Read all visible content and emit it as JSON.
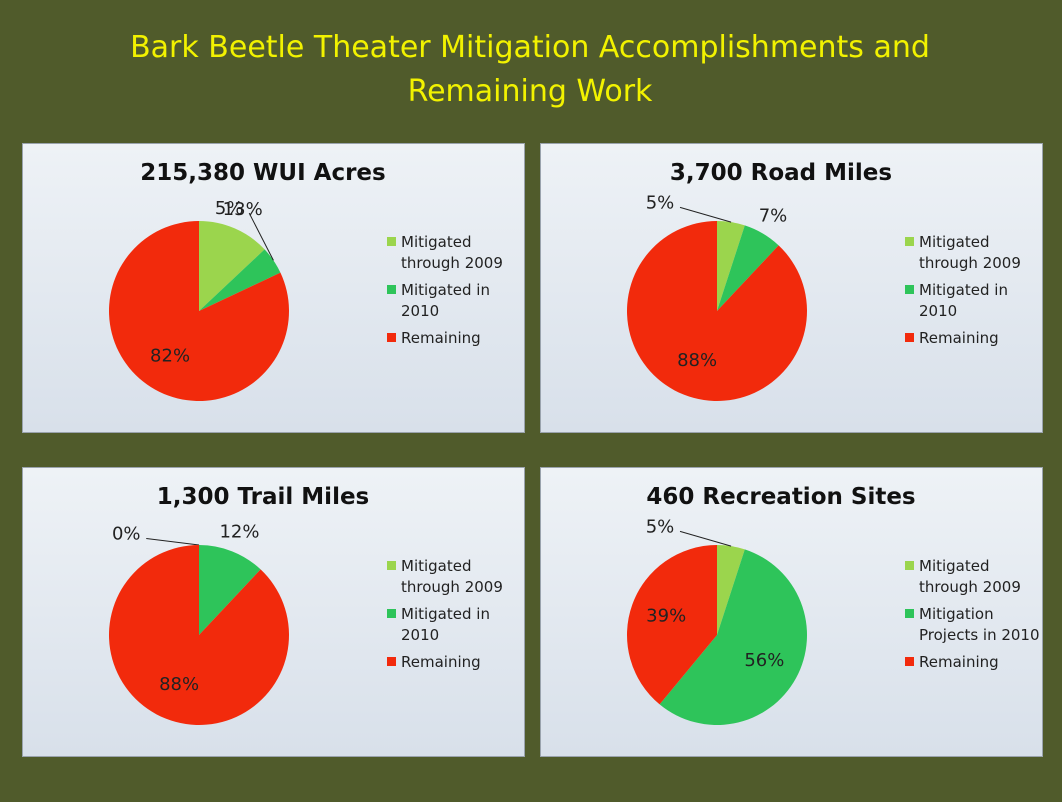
{
  "title": "Bark Beetle Theater Mitigation Accomplishments and Remaining Work",
  "chart_data": [
    {
      "type": "pie",
      "title": "215,380 WUI Acres",
      "categories": [
        "Mitigated through 2009",
        "Mitigated in 2010",
        "Remaining"
      ],
      "values": [
        13,
        5,
        82
      ],
      "value_labels": [
        "13%",
        "5%",
        "82%"
      ],
      "colors": [
        "#9bd54d",
        "#2ec45a",
        "#f22a0c"
      ]
    },
    {
      "type": "pie",
      "title": "3,700 Road Miles",
      "categories": [
        "Mitigated through 2009",
        "Mitigated in 2010",
        "Remaining"
      ],
      "values": [
        5,
        7,
        88
      ],
      "value_labels": [
        "5%",
        "7%",
        "88%"
      ],
      "colors": [
        "#9bd54d",
        "#2ec45a",
        "#f22a0c"
      ]
    },
    {
      "type": "pie",
      "title": "1,300 Trail Miles",
      "categories": [
        "Mitigated through 2009",
        "Mitigated in 2010",
        "Remaining"
      ],
      "values": [
        0,
        12,
        88
      ],
      "value_labels": [
        "0%",
        "12%",
        "88%"
      ],
      "colors": [
        "#9bd54d",
        "#2ec45a",
        "#f22a0c"
      ]
    },
    {
      "type": "pie",
      "title": "460  Recreation Sites",
      "categories": [
        "Mitigated through 2009",
        "Mitigation Projects in 2010",
        "Remaining"
      ],
      "values": [
        5,
        56,
        39
      ],
      "value_labels": [
        "5%",
        "56%",
        "39%"
      ],
      "colors": [
        "#9bd54d",
        "#2ec45a",
        "#f22a0c"
      ]
    }
  ]
}
